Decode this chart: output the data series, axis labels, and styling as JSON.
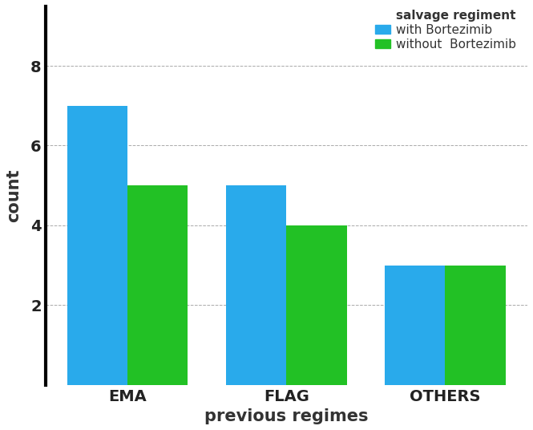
{
  "categories": [
    "EMA",
    "FLAG",
    "OTHERS"
  ],
  "with_bortezomib": [
    7,
    5,
    3
  ],
  "without_bortezomib": [
    5,
    4,
    3
  ],
  "bar_color_with": "#29AAEB",
  "bar_color_without": "#22C125",
  "xlabel": "previous regimes",
  "ylabel": "count",
  "ylim": [
    0,
    9.5
  ],
  "yticks": [
    2,
    4,
    6,
    8
  ],
  "legend_title": "salvage regiment",
  "legend_label_with": "with Bortezimib",
  "legend_label_without": "without  Bortezimib",
  "bar_width": 0.38,
  "background_color": "#ffffff",
  "axis_label_fontsize": 15,
  "tick_fontsize": 14,
  "legend_fontsize": 11
}
